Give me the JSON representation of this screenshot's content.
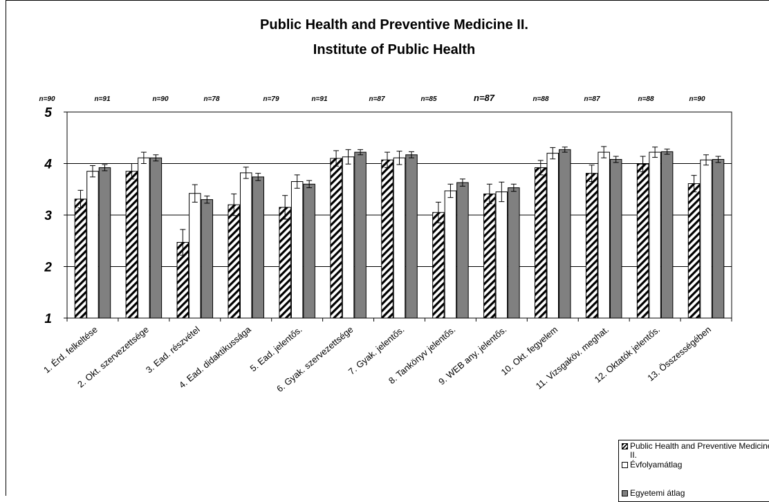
{
  "chart_data": {
    "type": "bar",
    "title": "Public Health and Preventive Medicine II.",
    "subtitle": "Institute of Public Health",
    "ylim": [
      1,
      5
    ],
    "yticks": [
      "1",
      "2",
      "3",
      "4",
      "5"
    ],
    "grid": true,
    "legend_position": "bottom-right",
    "categories": [
      "1. Érd. felkeltése",
      "2. Okt. szervezettsége",
      "3. Ead. részvétel",
      "4. Ead. didaktikussága",
      "5. Ead. jelentős.",
      "6. Gyak. szervezettsége",
      "7. Gyak. jelentős.",
      "8. Tankönyv jelentős.",
      "9. WEB any. jelentős.",
      "10. Okt. fegyelem",
      "11. Vizsgaköv. meghat.",
      "12. Oktatók jelentős.",
      "13. Összességében"
    ],
    "n_labels": [
      "n=90",
      "n=91",
      "n=90",
      "n=78",
      "n=79",
      "n=91",
      "n=87",
      "n=85",
      "n=87",
      "n=88",
      "n=87",
      "n=88",
      "n=90"
    ],
    "series": [
      {
        "name": "Public Health and Preventive Medicine II.",
        "values": [
          3.31,
          3.85,
          2.47,
          3.2,
          3.15,
          4.1,
          4.07,
          3.05,
          3.41,
          3.92,
          3.81,
          3.99,
          3.61
        ],
        "errors": [
          0.17,
          0.15,
          0.25,
          0.21,
          0.23,
          0.15,
          0.15,
          0.2,
          0.19,
          0.14,
          0.16,
          0.15,
          0.16
        ]
      },
      {
        "name": "Évfolyamátlag",
        "values": [
          3.85,
          4.11,
          3.42,
          3.82,
          3.65,
          4.13,
          4.11,
          3.47,
          3.45,
          4.2,
          4.22,
          4.22,
          4.07
        ],
        "errors": [
          0.11,
          0.11,
          0.17,
          0.11,
          0.13,
          0.14,
          0.13,
          0.13,
          0.19,
          0.11,
          0.11,
          0.1,
          0.1
        ]
      },
      {
        "name": "Egyetemi átlag",
        "values": [
          3.92,
          4.11,
          3.3,
          3.74,
          3.6,
          4.22,
          4.17,
          3.63,
          3.53,
          4.27,
          4.08,
          4.23,
          4.08
        ],
        "errors": [
          0.06,
          0.06,
          0.07,
          0.07,
          0.07,
          0.05,
          0.06,
          0.07,
          0.07,
          0.05,
          0.06,
          0.05,
          0.06
        ]
      }
    ],
    "colors": {
      "series1": "#000000",
      "series2": "#ffffff",
      "series3": "#808080"
    }
  },
  "legend": {
    "items": [
      {
        "label": "Public Health and Preventive Medicine II."
      },
      {
        "label": "Évfolyamátlag"
      },
      {
        "label": "Egyetemi átlag"
      }
    ]
  }
}
